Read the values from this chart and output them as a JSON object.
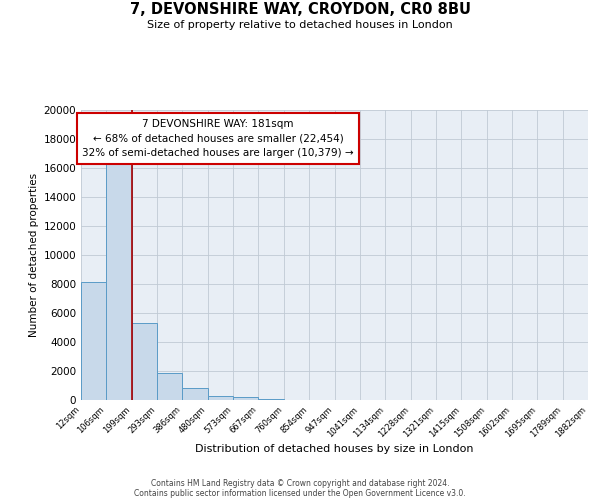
{
  "title": "7, DEVONSHIRE WAY, CROYDON, CR0 8BU",
  "subtitle": "Size of property relative to detached houses in London",
  "xlabel": "Distribution of detached houses by size in London",
  "ylabel": "Number of detached properties",
  "bar_values": [
    8150,
    16600,
    5300,
    1850,
    800,
    300,
    200,
    100,
    0,
    0,
    0,
    0,
    0,
    0,
    0,
    0,
    0,
    0,
    0,
    0
  ],
  "bar_labels": [
    "12sqm",
    "106sqm",
    "199sqm",
    "293sqm",
    "386sqm",
    "480sqm",
    "573sqm",
    "667sqm",
    "760sqm",
    "854sqm",
    "947sqm",
    "1041sqm",
    "1134sqm",
    "1228sqm",
    "1321sqm",
    "1415sqm",
    "1508sqm",
    "1602sqm",
    "1695sqm",
    "1789sqm",
    "1882sqm"
  ],
  "bar_color": "#c8d9ea",
  "bar_edge_color": "#5a9bc7",
  "annotation_title": "7 DEVONSHIRE WAY: 181sqm",
  "annotation_line1": "← 68% of detached houses are smaller (22,454)",
  "annotation_line2": "32% of semi-detached houses are larger (10,379) →",
  "annotation_box_color": "#ffffff",
  "annotation_box_edge": "#cc0000",
  "vertical_line_color": "#aa0000",
  "ylim": [
    0,
    20000
  ],
  "yticks": [
    0,
    2000,
    4000,
    6000,
    8000,
    10000,
    12000,
    14000,
    16000,
    18000,
    20000
  ],
  "grid_color": "#c0cad4",
  "bg_color": "#e8eef5",
  "footer1": "Contains HM Land Registry data © Crown copyright and database right 2024.",
  "footer2": "Contains public sector information licensed under the Open Government Licence v3.0."
}
